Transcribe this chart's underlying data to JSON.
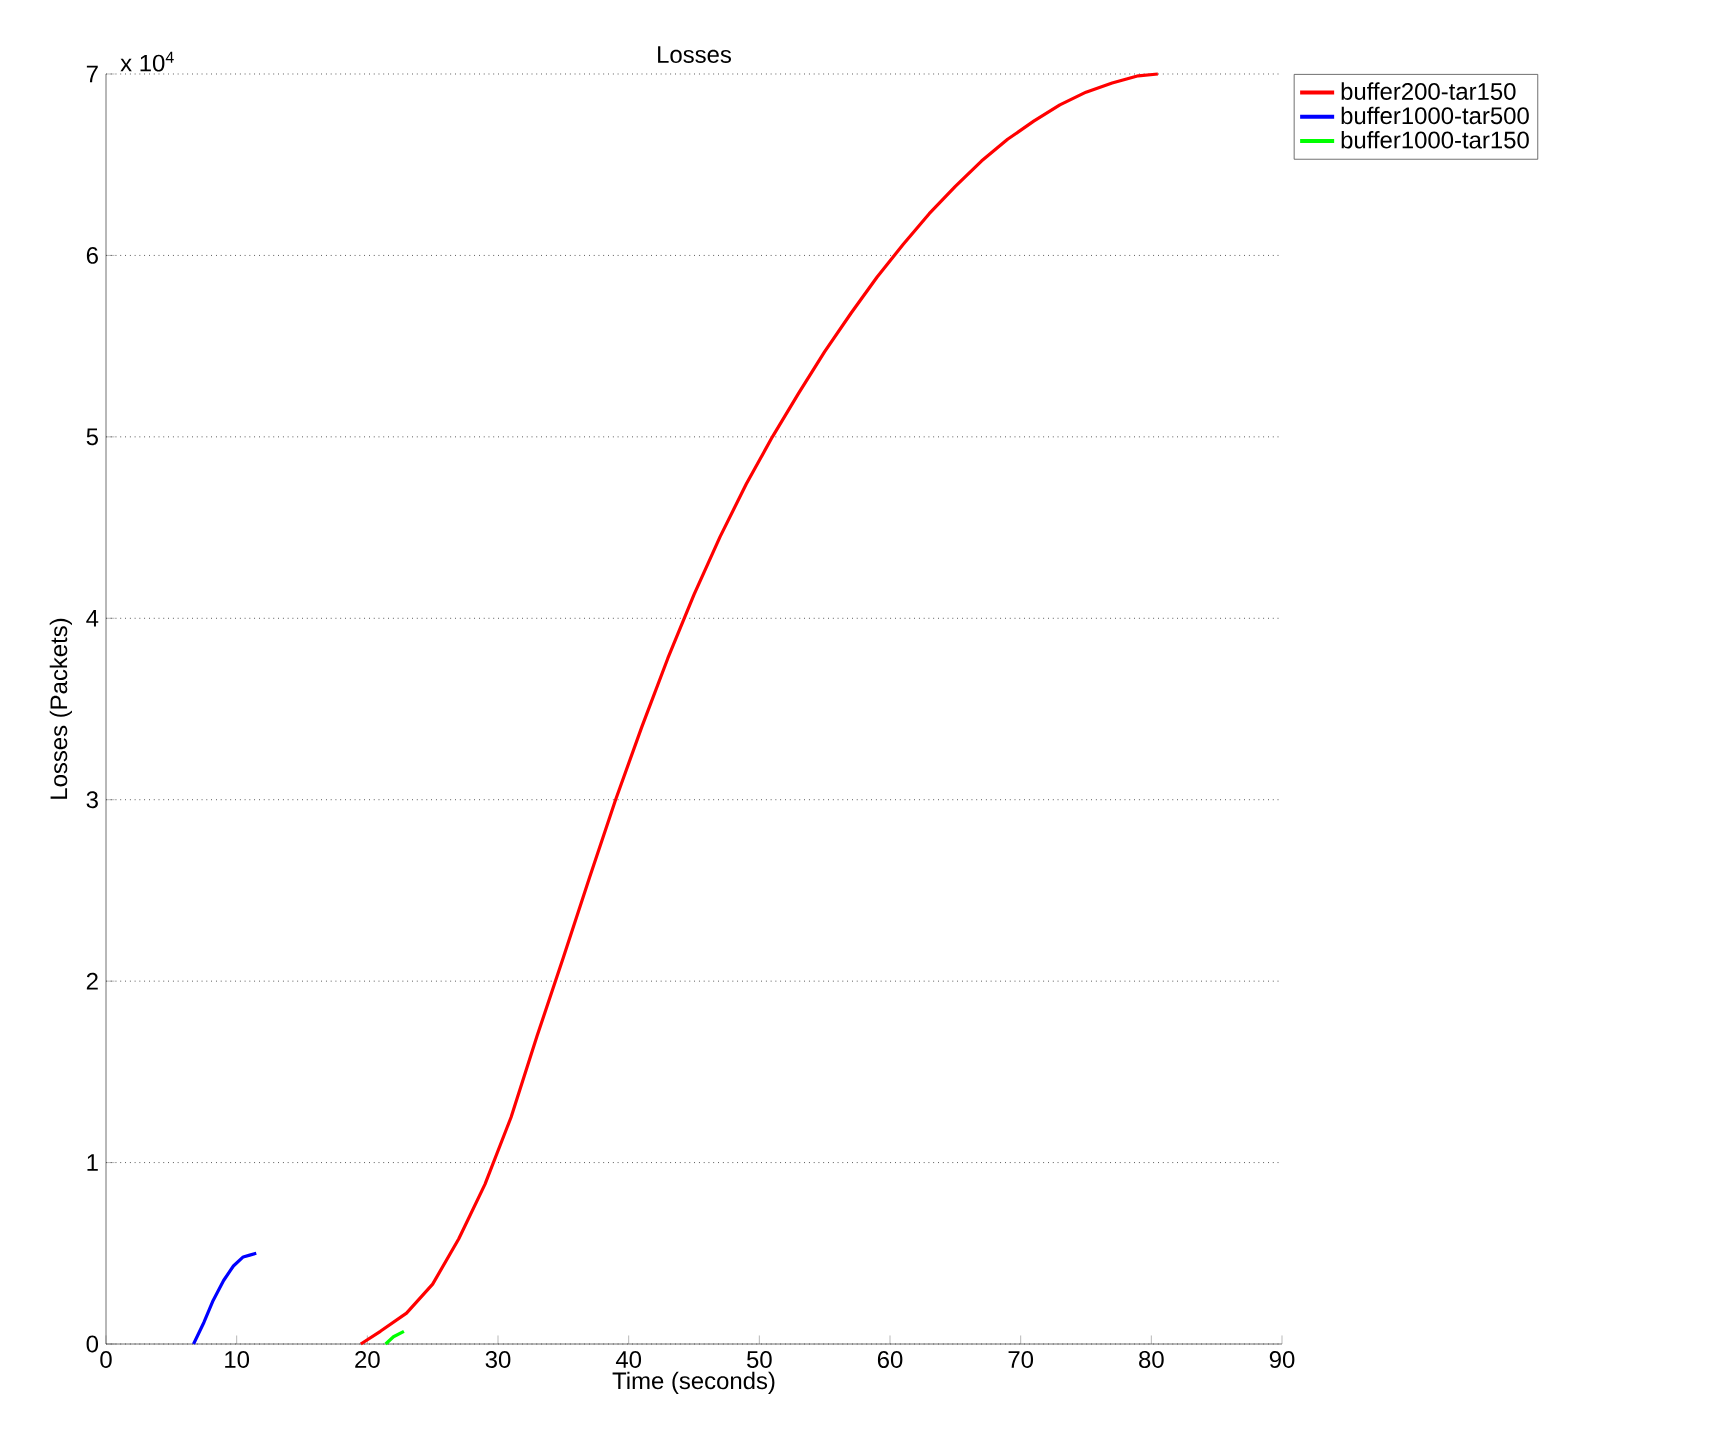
{
  "chart_data": {
    "type": "line",
    "title": "Losses",
    "xlabel": "Time (seconds)",
    "ylabel": "Losses (Packets)",
    "annotations": [
      "x 10$^{4}$"
    ],
    "xlim": [
      0,
      90
    ],
    "xticks": [
      0,
      10,
      20,
      30,
      40,
      50,
      60,
      70,
      80,
      90
    ],
    "ylim": [
      0,
      7
    ],
    "yticks": [
      0,
      1,
      2,
      3,
      4,
      5,
      6,
      7
    ],
    "grid": "y",
    "legend": "top right",
    "marker": "none",
    "line_style": "solid",
    "series": [
      {
        "name": "buffer200-tar150",
        "color": "#ff0000",
        "x": [
          19.5,
          21,
          23,
          25,
          27,
          29,
          31,
          33,
          35,
          37,
          39,
          41,
          43,
          45,
          47,
          49,
          51,
          53,
          55,
          57,
          59,
          61,
          63,
          65,
          67,
          69,
          71,
          73,
          75,
          77,
          79,
          80.5
        ],
        "values": [
          0,
          0.07,
          0.17,
          0.33,
          0.58,
          0.88,
          1.25,
          1.7,
          2.13,
          2.57,
          3.0,
          3.4,
          3.78,
          4.13,
          4.45,
          4.74,
          5.0,
          5.24,
          5.47,
          5.68,
          5.88,
          6.06,
          6.23,
          6.38,
          6.52,
          6.64,
          6.74,
          6.83,
          6.9,
          6.95,
          6.99,
          7.0
        ]
      },
      {
        "name": "buffer1000-tar500",
        "color": "#0000ff",
        "x": [
          6.7,
          7.5,
          8.2,
          9,
          9.75,
          10.5,
          11,
          11.5
        ],
        "values": [
          0,
          0.12,
          0.24,
          0.35,
          0.43,
          0.48,
          0.49,
          0.5
        ]
      },
      {
        "name": "buffer1000-tar150",
        "color": "#00ff00",
        "x": [
          21.4,
          22,
          22.8
        ],
        "values": [
          0,
          0.04,
          0.07
        ]
      }
    ]
  }
}
